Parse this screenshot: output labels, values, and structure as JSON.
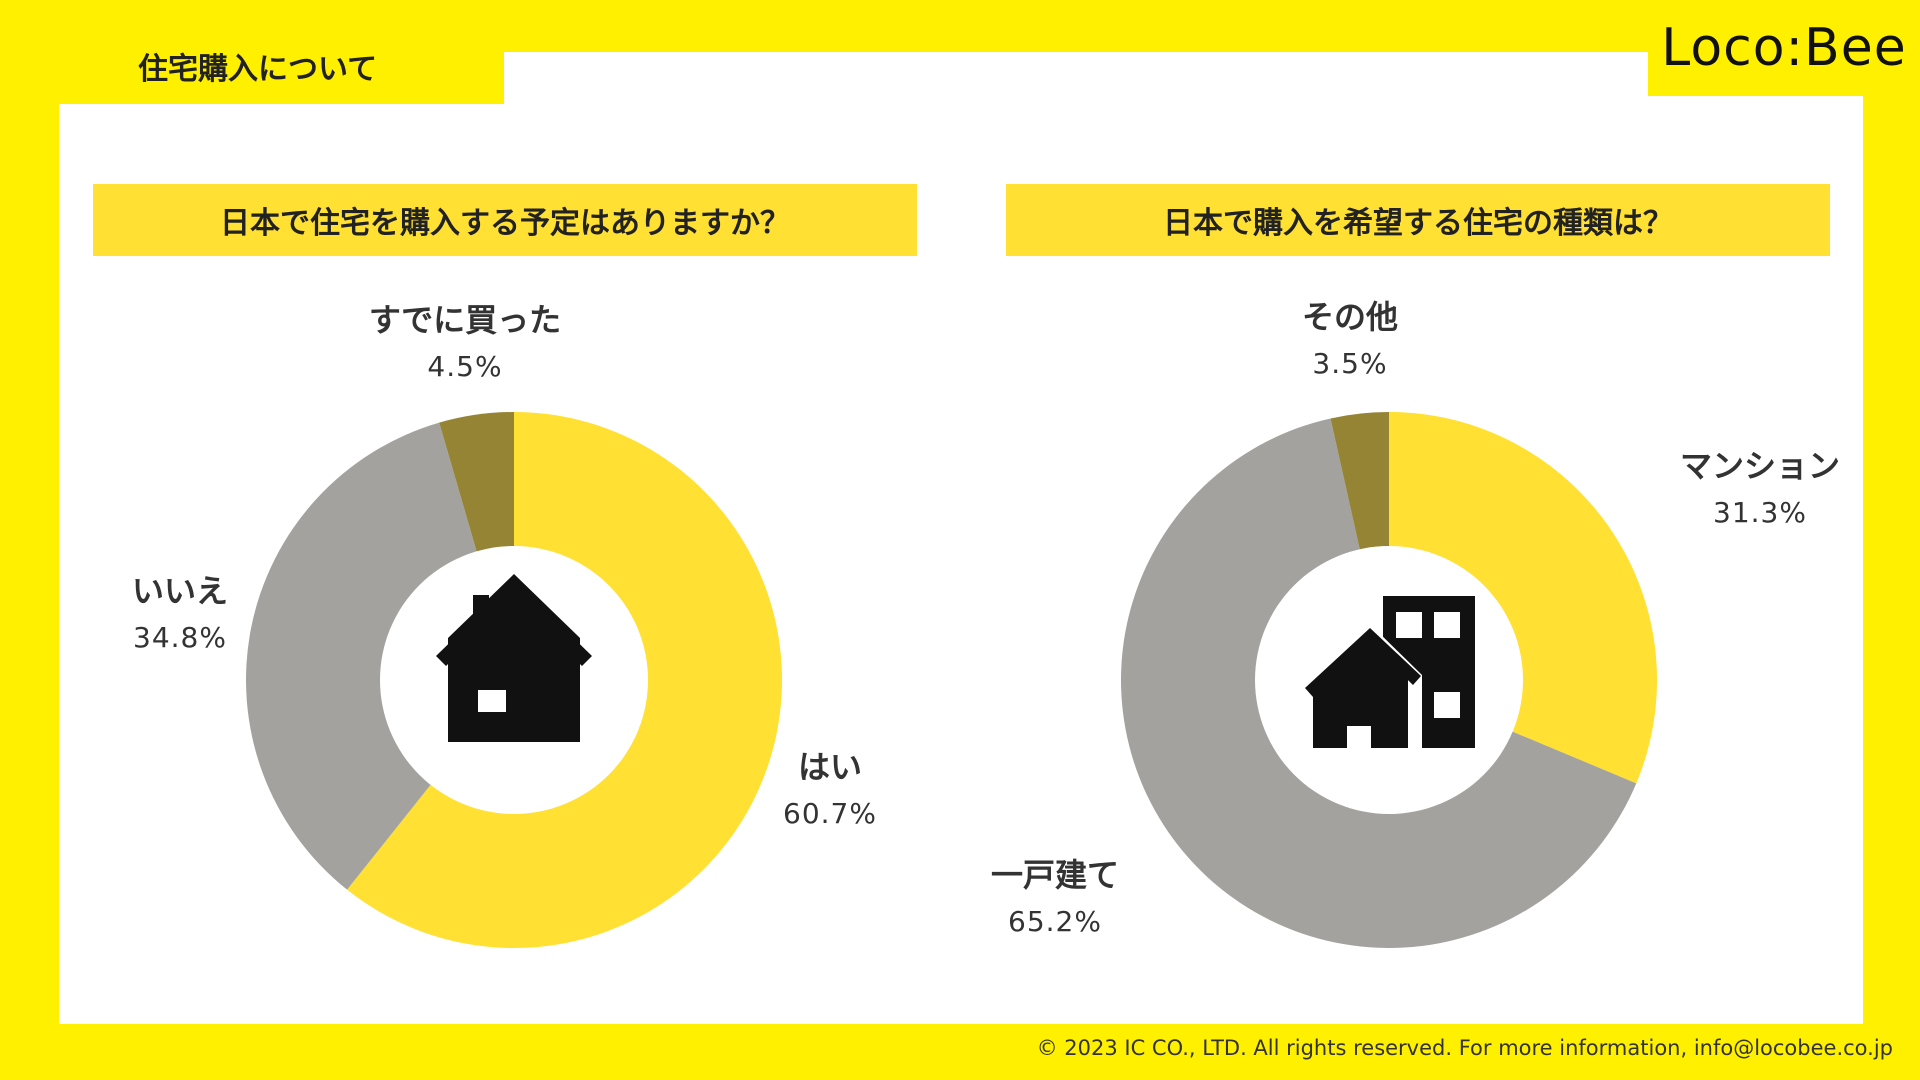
{
  "header": {
    "tab_title": "住宅購入について",
    "logo": "Loco:Bee"
  },
  "colors": {
    "background": "#FFF000",
    "question_bar": "#FFE033",
    "yellow_slice": "#FFE033",
    "gray_slice": "#A3A29E",
    "olive_slice": "#948433"
  },
  "chart_data": [
    {
      "type": "pie",
      "title": "日本で住宅を購入する予定はありますか？",
      "center_icon": "house-icon",
      "slices": [
        {
          "label": "はい",
          "value": 60.7,
          "value_label": "60.7%",
          "color": "#FFE033"
        },
        {
          "label": "いいえ",
          "value": 34.8,
          "value_label": "34.8%",
          "color": "#A3A29E"
        },
        {
          "label": "すでに買った",
          "value": 4.5,
          "value_label": "4.5%",
          "color": "#948433"
        }
      ]
    },
    {
      "type": "pie",
      "title": "日本で購入を希望する住宅の種類は？",
      "center_icon": "buildings-icon",
      "slices": [
        {
          "label": "マンション",
          "value": 31.3,
          "value_label": "31.3%",
          "color": "#FFE033"
        },
        {
          "label": "一戸建て",
          "value": 65.2,
          "value_label": "65.2%",
          "color": "#A3A29E"
        },
        {
          "label": "その他",
          "value": 3.5,
          "value_label": "3.5%",
          "color": "#948433"
        }
      ]
    }
  ],
  "footer": {
    "copyright": "© 2023 IC CO., LTD. All rights reserved. For more information, info@locobee.co.jp"
  }
}
